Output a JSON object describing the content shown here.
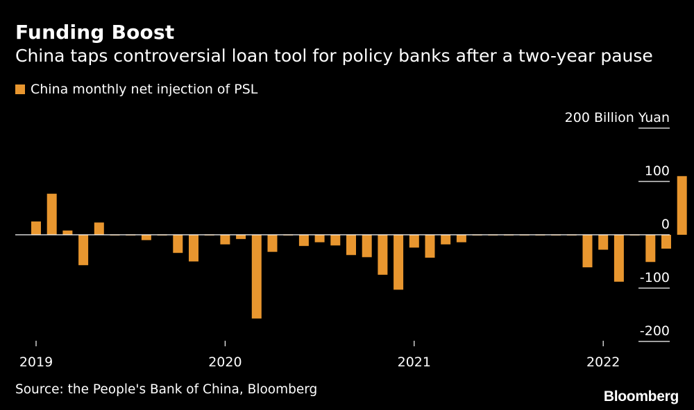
{
  "title": "Funding Boost",
  "subtitle": "China taps controversial loan tool for policy banks after a two-year pause",
  "source": "Source: the People's Bank of China, Bloomberg",
  "brand": "Bloomberg",
  "colors": {
    "background": "#000000",
    "bar": "#E8962F",
    "text": "#FFFFFF",
    "axis": "#FFFFFF"
  },
  "chart_data": {
    "type": "bar",
    "series": [
      {
        "name": "China monthly net injection of PSL",
        "x": [
          "2019-01",
          "2019-02",
          "2019-03",
          "2019-04",
          "2019-05",
          "2019-06",
          "2019-07",
          "2019-08",
          "2019-09",
          "2019-10",
          "2019-11",
          "2019-12",
          "2020-01",
          "2020-02",
          "2020-03",
          "2020-04",
          "2020-05",
          "2020-06",
          "2020-07",
          "2020-08",
          "2020-09",
          "2020-10",
          "2020-11",
          "2020-12",
          "2021-01",
          "2021-02",
          "2021-03",
          "2021-04",
          "2021-05",
          "2021-06",
          "2021-07",
          "2021-08",
          "2021-09",
          "2021-10",
          "2021-11",
          "2021-12",
          "2022-01",
          "2022-02",
          "2022-03",
          "2022-04",
          "2022-05",
          "2022-06",
          "2022-07",
          "2022-08",
          "2022-09",
          "2022-10",
          "2022-11",
          "2022-12"
        ],
        "values": [
          25,
          77,
          8,
          -57,
          23,
          -1,
          -1,
          -10,
          -1,
          -34,
          -50,
          -1,
          -18,
          -8,
          -157,
          -32,
          -1,
          -21,
          -14,
          -20,
          -38,
          -42,
          -75,
          -103,
          -24,
          -43,
          -18,
          -14,
          -1,
          -1,
          -1,
          -1,
          -1,
          -1,
          -1,
          -61,
          -28,
          -88,
          -1,
          -51,
          -26,
          110,
          0,
          0,
          0,
          0,
          0,
          0
        ]
      }
    ],
    "x_ticks": [
      {
        "label": "2019",
        "at": "2019-01"
      },
      {
        "label": "2020",
        "at": "2020-01"
      },
      {
        "label": "2021",
        "at": "2021-01"
      },
      {
        "label": "2022",
        "at": "2022-01"
      }
    ],
    "y_ticks": [
      {
        "value": 200,
        "label": "200"
      },
      {
        "value": 100,
        "label": "100"
      },
      {
        "value": 0,
        "label": "0"
      },
      {
        "value": -100,
        "label": "-100"
      },
      {
        "value": -200,
        "label": "-200"
      }
    ],
    "y_unit": "Billion Yuan",
    "ylim": [
      -200,
      200
    ],
    "legend_position": "top-left",
    "grid": false
  }
}
